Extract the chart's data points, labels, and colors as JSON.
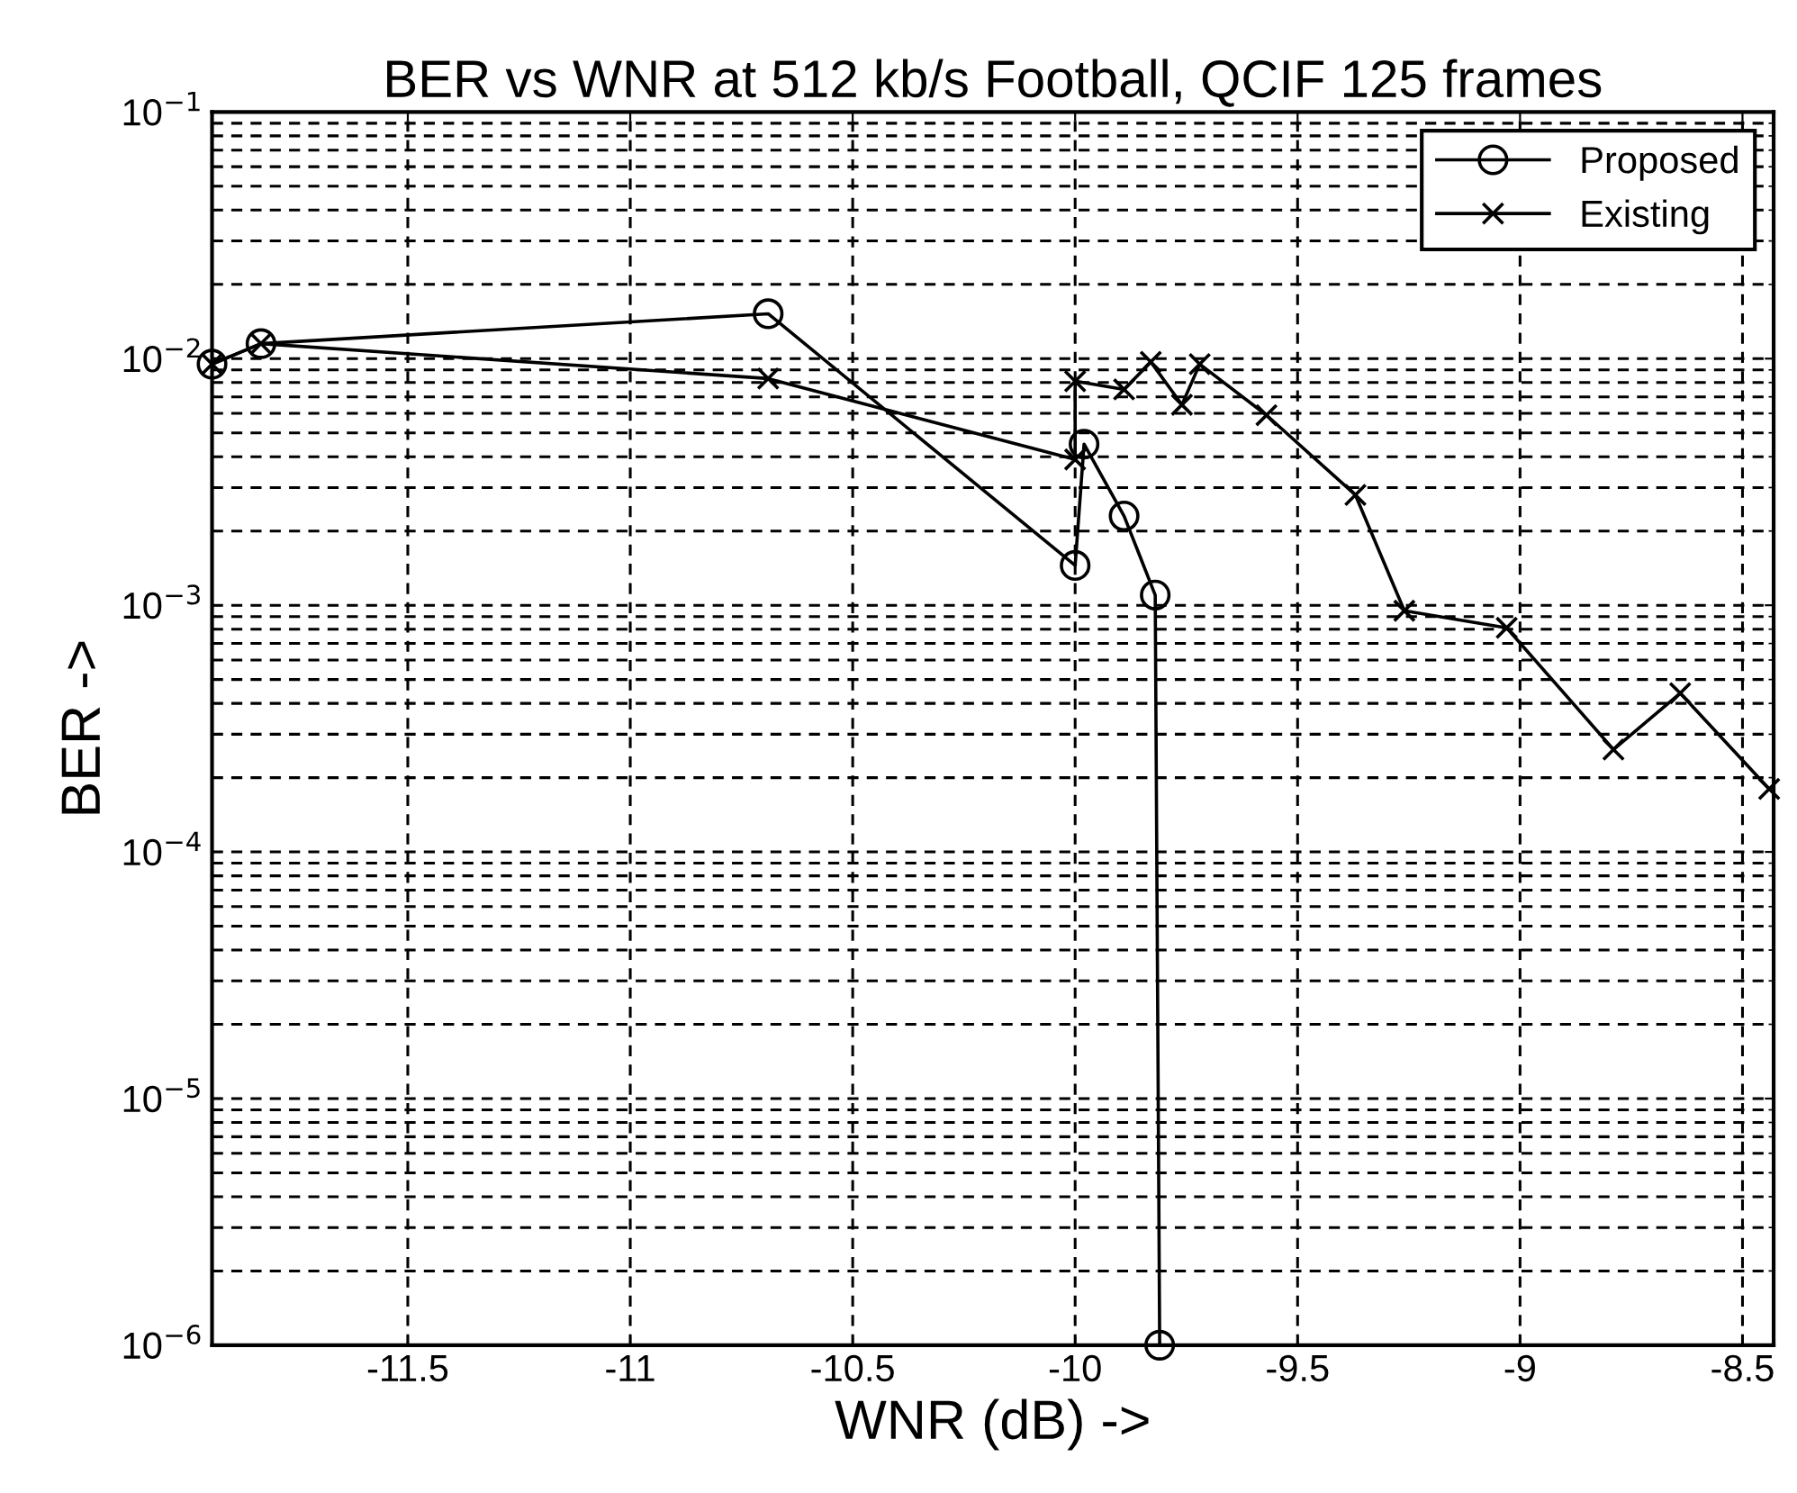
{
  "chart_data": {
    "type": "line",
    "title": "BER vs WNR at 512 kb/s Football, QCIF 125 frames",
    "xlabel": "WNR (dB) ->",
    "ylabel": "BER ->",
    "log": "y",
    "grid": true,
    "legend": "top right",
    "line_style": "solid",
    "xlim": [
      -11.94,
      -8.43
    ],
    "xticks": [
      -11.5,
      -11,
      -10.5,
      -10,
      -9.5,
      -9,
      -8.5
    ],
    "ylim": [
      1e-06,
      0.1
    ],
    "yticks": [
      {
        "value": 1e-06,
        "label": "10$^{−6}$"
      },
      {
        "value": 1e-05,
        "label": "10$^{−5}$"
      },
      {
        "value": 0.0001,
        "label": "10$^{−4}$"
      },
      {
        "value": 0.001,
        "label": "10$^{−3}$"
      },
      {
        "value": 0.01,
        "label": "10$^{−2}$"
      },
      {
        "value": 0.1,
        "label": "10$^{−1}$"
      }
    ],
    "series": [
      {
        "name": "Proposed",
        "color": "#000000",
        "marker": "circle",
        "x": [
          -11.94,
          -11.83,
          -10.69,
          -10.0,
          -9.98,
          -9.89,
          -9.82,
          -9.81
        ],
        "values": [
          0.0095,
          0.0115,
          0.0152,
          0.00145,
          0.0045,
          0.0023,
          0.0011,
          1e-06
        ]
      },
      {
        "name": "Existing",
        "color": "#000000",
        "marker": "cross",
        "x": [
          -11.94,
          -11.83,
          -10.69,
          -10.0,
          -10.0,
          -9.89,
          -9.83,
          -9.76,
          -9.72,
          -9.57,
          -9.37,
          -9.26,
          -9.03,
          -8.79,
          -8.64,
          -8.44
        ],
        "values": [
          0.0095,
          0.0115,
          0.0083,
          0.0039,
          0.0081,
          0.0075,
          0.0097,
          0.0065,
          0.0095,
          0.0059,
          0.0028,
          0.00095,
          0.00081,
          0.00026,
          0.00044,
          0.00018
        ]
      }
    ]
  }
}
